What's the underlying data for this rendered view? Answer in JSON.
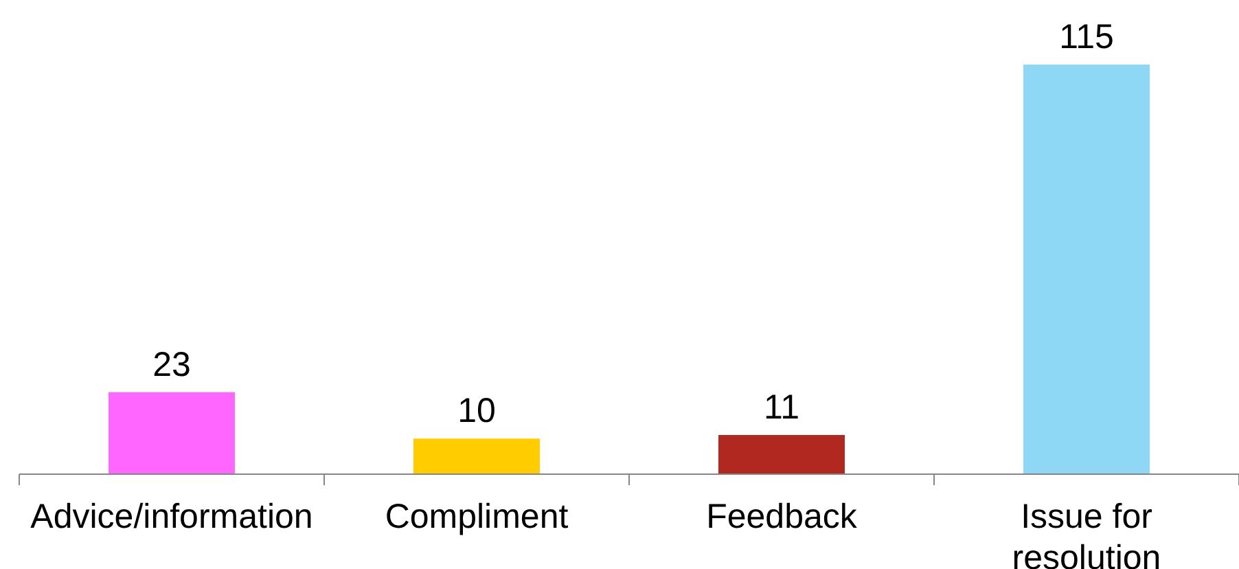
{
  "chart_data": {
    "type": "bar",
    "categories": [
      "Advice/information",
      "Compliment",
      "Feedback",
      "Issue for resolution"
    ],
    "values": [
      23,
      10,
      11,
      115
    ],
    "colors": [
      "#ff66ff",
      "#ffcc00",
      "#b0281f",
      "#8fd8f5"
    ],
    "data_labels": true
  }
}
